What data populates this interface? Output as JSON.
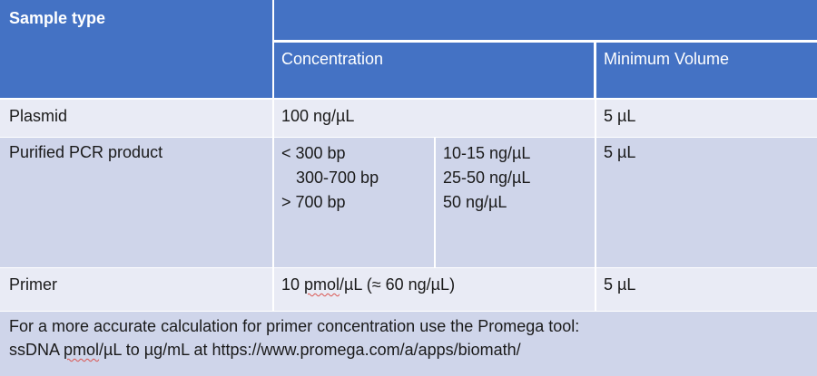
{
  "header": {
    "sample_type": "Sample type",
    "concentration": "Concentration",
    "minimum_volume": "Minimum Volume"
  },
  "rows": {
    "plasmid": {
      "sample": "Plasmid",
      "concentration": "100 ng/µL",
      "volume": "5 µL"
    },
    "pcr": {
      "sample": "Purified PCR product",
      "sizes": [
        "< 300 bp",
        "300-700 bp",
        "> 700 bp"
      ],
      "concentrations": [
        "10-15 ng/µL",
        "25-50 ng/µL",
        "50 ng/µL"
      ],
      "volume": "5 µL"
    },
    "primer": {
      "sample": "Primer",
      "concentration_prefix": "10 ",
      "concentration_unit": "pmol",
      "concentration_suffix": "/µL (≈ 60 ng/µL)",
      "volume": "5 µL"
    }
  },
  "footer": {
    "line1": "For a more accurate calculation for primer concentration use the Promega tool:",
    "line2_prefix": "ssDNA ",
    "line2_unit": "pmol",
    "line2_suffix": "/µL to µg/mL at https://www.promega.com/a/apps/biomath/"
  },
  "colors": {
    "header_blue": "#4472c4",
    "row_light": "#e9ebf5",
    "row_mid": "#cfd5ea",
    "spellcheck_underline": "#d9534f"
  }
}
